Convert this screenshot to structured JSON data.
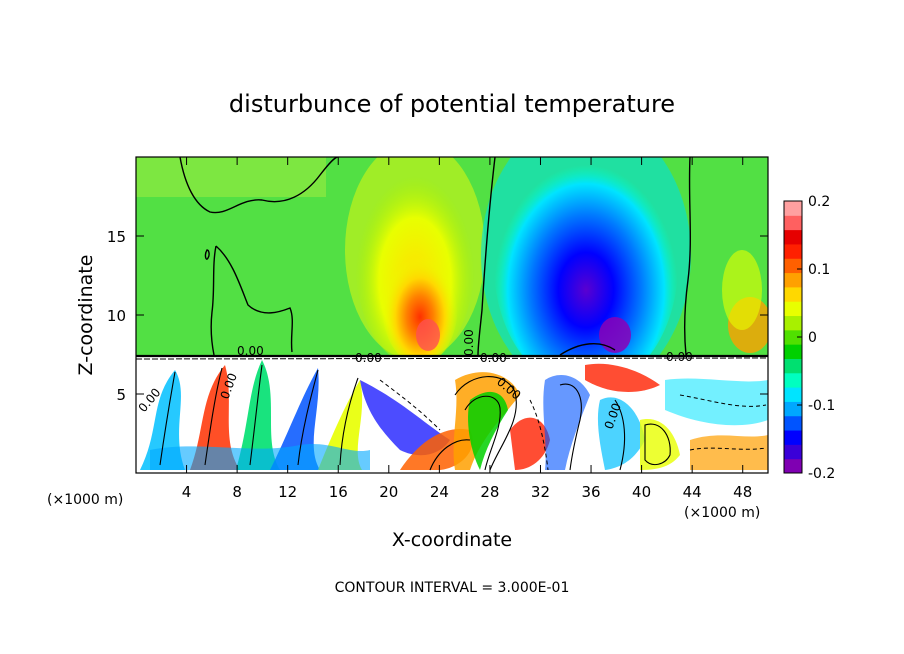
{
  "chart_data": {
    "type": "heatmap",
    "title": "disturbunce of potential temperature",
    "xlabel": "X-coordinate",
    "ylabel": "Z-coordinate",
    "x_units": "(×1000 m)",
    "x_units_right": "(×1000 m)",
    "xlim": [
      0,
      50
    ],
    "ylim": [
      0,
      20
    ],
    "x_ticks": [
      "4",
      "8",
      "12",
      "16",
      "20",
      "24",
      "28",
      "32",
      "36",
      "40",
      "44",
      "48"
    ],
    "x_tick_values": [
      4,
      8,
      12,
      16,
      20,
      24,
      28,
      32,
      36,
      40,
      44,
      48
    ],
    "y_ticks": [
      "5",
      "10",
      "15"
    ],
    "y_tick_values": [
      5,
      10,
      15
    ],
    "colorbar": {
      "range": [
        -0.2,
        0.2
      ],
      "tick_labels": [
        "0.2",
        "0.1",
        "0",
        "-0.1",
        "-0.2"
      ],
      "tick_values": [
        0.2,
        0.1,
        0,
        -0.1,
        -0.2
      ],
      "colors": [
        "#7f00b2",
        "#3a00d8",
        "#0000ff",
        "#0054ff",
        "#00a8ff",
        "#00e4ff",
        "#00ffc0",
        "#00e070",
        "#00d000",
        "#50e000",
        "#a8f000",
        "#e8ff00",
        "#ffd800",
        "#ffa000",
        "#ff6000",
        "#ff2000",
        "#e60000",
        "#ff6060",
        "#ffa0a0"
      ]
    },
    "contour_labels": [
      "0.00",
      "0.00",
      "0.00",
      "0.00",
      "0.00",
      "0.00",
      "0.00",
      "0.00",
      "0.00"
    ],
    "contour_interval": "CONTOUR INTERVAL = 3.000E-01"
  }
}
